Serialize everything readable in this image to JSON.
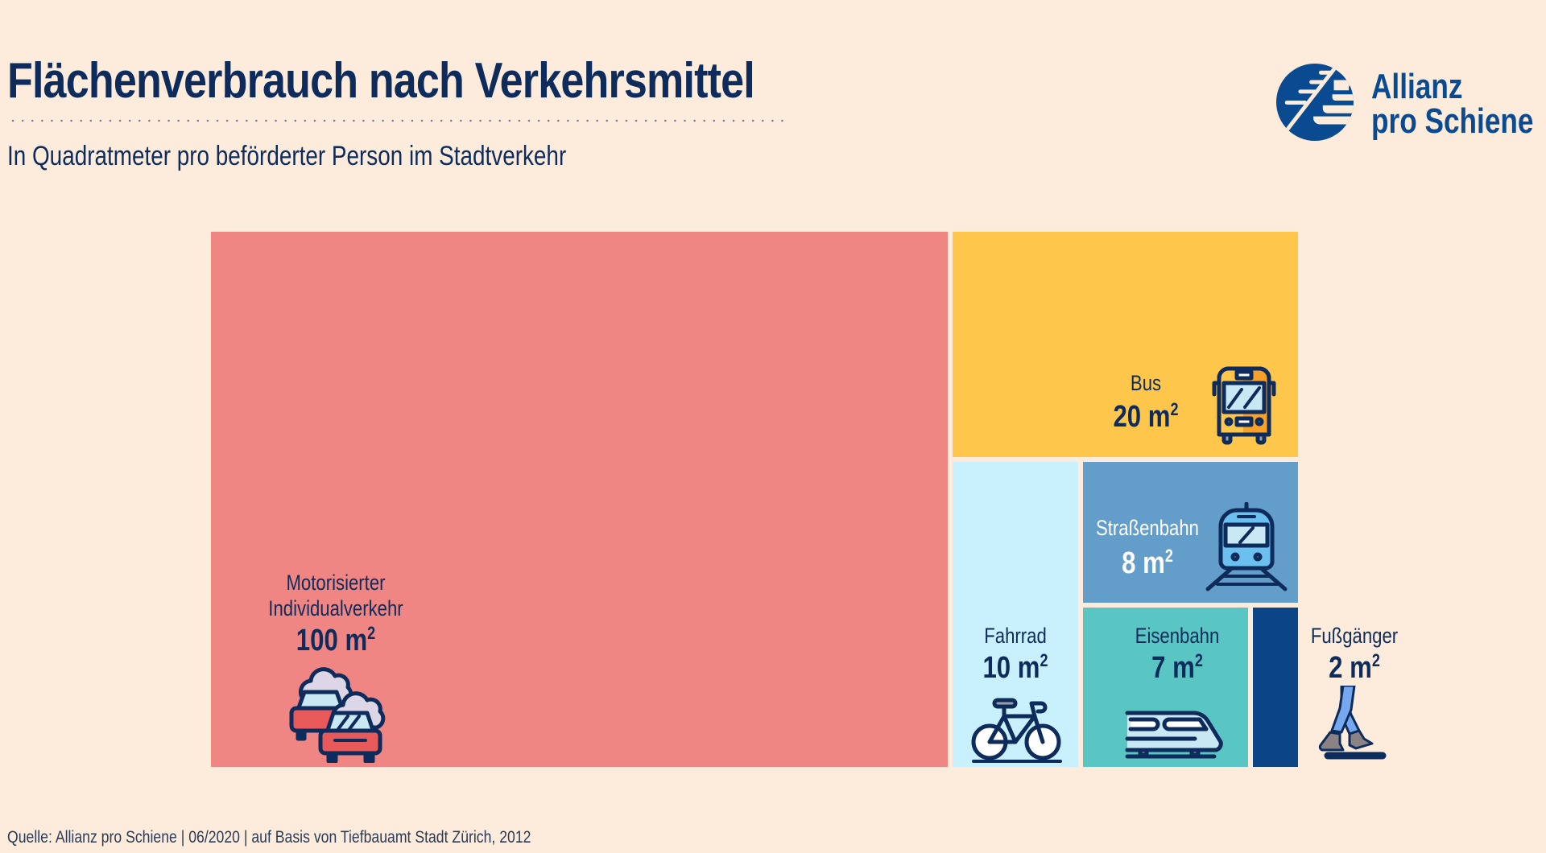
{
  "header": {
    "title": "Flächenverbrauch nach Verkehrsmittel",
    "subtitle": "In Quadratmeter pro beförderter Person im Stadtverkehr"
  },
  "logo": {
    "line1": "Allianz",
    "line2": "pro Schiene",
    "color": "#0a4a90"
  },
  "footer": {
    "source": "Quelle: Allianz pro Schiene | 06/2020 | auf Basis von Tiefbauamt Stadt Zürich, 2012"
  },
  "chart_data": {
    "type": "treemap",
    "title": "Flächenverbrauch nach Verkehrsmittel",
    "subtitle": "In Quadratmeter pro beförderter Person im Stadtverkehr",
    "unit": "m²",
    "items": [
      {
        "key": "miv",
        "label": "Motorisierter Individualverkehr",
        "label_lines": [
          "Motorisierter",
          "Individualverkehr"
        ],
        "value": 100,
        "value_text": "100 m",
        "color": "#ef8683",
        "text_color": "#0d2b5b",
        "icon": "cars-traffic-icon"
      },
      {
        "key": "bus",
        "label": "Bus",
        "label_lines": [
          "Bus"
        ],
        "value": 20,
        "value_text": "20 m",
        "color": "#fec74c",
        "text_color": "#0d2b5b",
        "icon": "bus-icon"
      },
      {
        "key": "fahrrad",
        "label": "Fahrrad",
        "label_lines": [
          "Fahrrad"
        ],
        "value": 10,
        "value_text": "10 m",
        "color": "#c9f1fd",
        "text_color": "#0d2b5b",
        "icon": "bicycle-icon"
      },
      {
        "key": "strassenbahn",
        "label": "Straßenbahn",
        "label_lines": [
          "Straßenbahn"
        ],
        "value": 8,
        "value_text": "8 m",
        "color": "#639ecb",
        "text_color": "#ffffff",
        "icon": "tram-icon"
      },
      {
        "key": "eisenbahn",
        "label": "Eisenbahn",
        "label_lines": [
          "Eisenbahn"
        ],
        "value": 7,
        "value_text": "7 m",
        "color": "#5ac6c3",
        "text_color": "#0d2b5b",
        "icon": "train-icon"
      },
      {
        "key": "fussgaenger",
        "label": "Fußgänger",
        "label_lines": [
          "Fußgänger"
        ],
        "value": 2,
        "value_text": "2 m",
        "color": "#0b4585",
        "text_color": "#0d2b5b",
        "icon": "walking-feet-icon"
      }
    ],
    "superscript": "2"
  }
}
